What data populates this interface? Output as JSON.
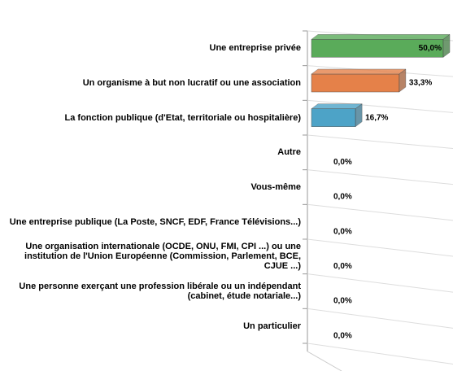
{
  "chart_data": {
    "type": "bar3d_horizontal",
    "categories": [
      "Une entreprise privée",
      "Un organisme à but non lucratif ou une association",
      "La fonction publique (d'Etat, territoriale ou hospitalière)",
      "Autre",
      "Vous-même",
      "Une entreprise publique (La Poste, SNCF, EDF, France Télévisions...)",
      "Une organisation internationale (OCDE, ONU, FMI, CPI ...) ou une institution de l'Union Européenne (Commission, Parlement, BCE, CJUE ...)",
      "Une personne exerçant une profession libérale ou un indépendant (cabinet, étude notariale...)",
      "Un particulier"
    ],
    "values": [
      50,
      33.3,
      16.7,
      0,
      0,
      0,
      0,
      0,
      0
    ],
    "value_labels": [
      "50,0%",
      "33,3%",
      "16,7%",
      "0,0%",
      "0,0%",
      "0,0%",
      "0,0%",
      "0,0%",
      "0,0%"
    ],
    "colors": [
      "#5aab5a",
      "#e58149",
      "#4da3c7",
      "#999999",
      "#999999",
      "#999999",
      "#999999",
      "#999999",
      "#999999"
    ],
    "xlim": [
      0,
      50
    ]
  }
}
